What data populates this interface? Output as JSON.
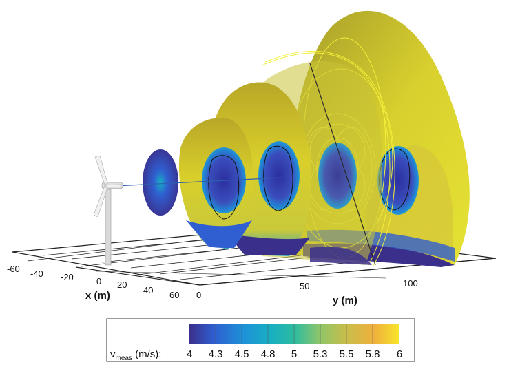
{
  "chart_data": {
    "type": "3d-surface",
    "axes": {
      "x": {
        "label": "x (m)",
        "ticks": [
          "-60",
          "-40",
          "-20",
          "0",
          "20",
          "40",
          "60"
        ]
      },
      "y": {
        "label": "y (m)",
        "ticks": [
          "0",
          "50",
          "100"
        ]
      }
    },
    "colorbar": {
      "label_main": "v",
      "label_sub": "meas",
      "label_unit": " (m/s):",
      "ticks": [
        "4",
        "4.3",
        "4.5",
        "4.8",
        "5",
        "5.3",
        "5.5",
        "5.8",
        "6"
      ],
      "colors": [
        "#3b2f8c",
        "#2f5fd0",
        "#1e8fd8",
        "#17aec4",
        "#2dbca0",
        "#8ec56a",
        "#c9bd4a",
        "#f0b03d",
        "#f8e62a"
      ]
    },
    "series": [
      {
        "type": "scan-surface",
        "y": 20,
        "value_range": [
          4.2,
          5.4
        ]
      },
      {
        "type": "scan-surface",
        "y": 40,
        "value_range": [
          4.3,
          6.0
        ]
      },
      {
        "type": "scan-surface",
        "y": 60,
        "value_range": [
          4.3,
          6.0
        ]
      },
      {
        "type": "scan-surface",
        "y": 80,
        "value_range": [
          4.3,
          6.0
        ]
      },
      {
        "type": "scan-surface",
        "y": 110,
        "value_range": [
          4.4,
          6.0
        ]
      }
    ],
    "turbine_position": {
      "x": 0,
      "y": 0
    },
    "colors": {
      "high": "#e2dc1a",
      "low": "#3b2f8c",
      "mid": "#17aec4"
    }
  }
}
